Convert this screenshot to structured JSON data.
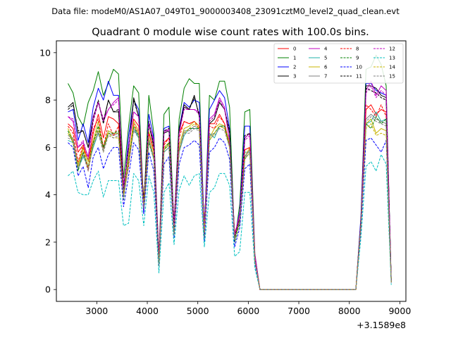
{
  "chart_data": {
    "type": "line",
    "suptitle": "Data file: modeM0/AS1A07_049T01_9000003408_23091cztM0_level2_quad_clean.evt",
    "title": "Quadrant 0 module wise count rates with 100.0s bins.",
    "xlabel": "",
    "ylabel": "",
    "x_offset_label": "+3.1589e8",
    "xlim": [
      2200,
      9120
    ],
    "ylim": [
      -0.5,
      10.5
    ],
    "xticks": [
      3000,
      4000,
      5000,
      6000,
      7000,
      8000,
      9000
    ],
    "xtick_labels": [
      "3000",
      "4000",
      "5000",
      "6000",
      "7000",
      "8000",
      "9000"
    ],
    "yticks": [
      0,
      2,
      4,
      6,
      8,
      10
    ],
    "ytick_labels": [
      "0",
      "2",
      "4",
      "6",
      "8",
      "10"
    ],
    "legend": {
      "location": "top-right",
      "ncol": 4
    },
    "x": [
      2430,
      2530,
      2630,
      2730,
      2830,
      2930,
      3030,
      3130,
      3230,
      3330,
      3430,
      3530,
      3630,
      3730,
      3830,
      3930,
      4030,
      4130,
      4230,
      4330,
      4430,
      4530,
      4630,
      4730,
      4830,
      4930,
      5030,
      5130,
      5230,
      5330,
      5430,
      5530,
      5630,
      5730,
      5830,
      5930,
      6030,
      6130,
      6230,
      6330,
      6430,
      6530,
      6630,
      6730,
      6830,
      6930,
      7030,
      7130,
      7230,
      7330,
      7430,
      7530,
      7630,
      7730,
      7830,
      7930,
      8030,
      8130,
      8230,
      8330,
      8430,
      8530,
      8630,
      8730,
      8830
    ],
    "series": [
      {
        "name": "0",
        "color": "#ff0000",
        "dash": "solid",
        "values": [
          7.0,
          6.8,
          5.8,
          6.1,
          5.4,
          6.6,
          7.4,
          6.4,
          7.3,
          7.2,
          7.0,
          4.2,
          5.4,
          7.2,
          6.9,
          3.8,
          6.6,
          5.8,
          1.2,
          6.2,
          6.4,
          2.9,
          6.6,
          7.1,
          7.0,
          7.1,
          6.9,
          2.8,
          7.0,
          7.0,
          7.4,
          7.0,
          6.1,
          2.4,
          3.0,
          5.9,
          6.0,
          1.2,
          0,
          0,
          0,
          0,
          0,
          0,
          0,
          0,
          0,
          0,
          0,
          0,
          0,
          0,
          0,
          0,
          0,
          0,
          0,
          0,
          2.9,
          7.6,
          7.8,
          7.4,
          7.6,
          7.5,
          0.4
        ]
      },
      {
        "name": "1",
        "color": "#008000",
        "dash": "solid",
        "values": [
          8.7,
          8.3,
          7.3,
          6.9,
          7.9,
          8.4,
          9.2,
          8.2,
          8.7,
          9.3,
          9.1,
          4.7,
          6.9,
          8.6,
          8.3,
          3.4,
          8.2,
          6.6,
          1.4,
          7.4,
          7.7,
          2.7,
          7.2,
          8.5,
          8.9,
          8.7,
          8.7,
          2.4,
          8.2,
          8.0,
          8.8,
          8.8,
          7.7,
          2.0,
          3.6,
          7.5,
          7.6,
          1.5,
          0,
          0,
          0,
          0,
          0,
          0,
          0,
          0,
          0,
          0,
          0,
          0,
          0,
          0,
          0,
          0,
          0,
          0,
          0,
          0,
          3.0,
          9.3,
          9.4,
          9.9,
          9.5,
          8.6,
          0.3
        ]
      },
      {
        "name": "2",
        "color": "#0000ff",
        "dash": "solid",
        "values": [
          7.5,
          7.6,
          6.3,
          7.0,
          6.2,
          7.7,
          8.5,
          8.0,
          8.8,
          8.2,
          8.2,
          4.1,
          6.5,
          8.0,
          7.6,
          3.2,
          7.4,
          6.4,
          1.1,
          6.8,
          6.9,
          2.6,
          6.8,
          7.9,
          7.7,
          8.0,
          7.9,
          2.6,
          7.6,
          8.0,
          8.4,
          8.1,
          6.8,
          2.2,
          3.3,
          6.9,
          6.9,
          1.3,
          0,
          0,
          0,
          0,
          0,
          0,
          0,
          0,
          0,
          0,
          0,
          0,
          0,
          0,
          0,
          0,
          0,
          0,
          0,
          0,
          3.1,
          8.7,
          8.7,
          8.4,
          8.3,
          8.2,
          0.3
        ]
      },
      {
        "name": "3",
        "color": "#000000",
        "dash": "solid",
        "values": [
          7.7,
          7.9,
          6.6,
          6.7,
          6.0,
          7.3,
          7.9,
          7.1,
          8.0,
          7.5,
          7.5,
          4.3,
          5.9,
          8.1,
          7.3,
          3.7,
          7.0,
          6.0,
          1.2,
          6.6,
          6.7,
          2.5,
          6.7,
          7.8,
          7.6,
          8.2,
          7.3,
          2.2,
          7.0,
          7.2,
          7.9,
          7.6,
          6.6,
          2.2,
          3.0,
          6.4,
          6.6,
          1.3,
          0,
          0,
          0,
          0,
          0,
          0,
          0,
          0,
          0,
          0,
          0,
          0,
          0,
          0,
          0,
          0,
          0,
          0,
          0,
          0,
          2.8,
          8.6,
          8.6,
          8.5,
          8.2,
          8.1,
          0.4
        ]
      },
      {
        "name": "4",
        "color": "#c000c0",
        "dash": "solid",
        "values": [
          7.3,
          7.1,
          6.0,
          6.2,
          5.6,
          7.3,
          7.9,
          7.1,
          7.6,
          7.9,
          8.1,
          4.4,
          6.0,
          7.5,
          7.3,
          3.5,
          7.0,
          6.3,
          1.4,
          6.7,
          6.7,
          2.8,
          6.6,
          7.7,
          7.6,
          7.6,
          7.5,
          2.4,
          7.2,
          7.4,
          8.1,
          7.7,
          6.2,
          2.3,
          3.2,
          6.4,
          6.6,
          1.5,
          0,
          0,
          0,
          0,
          0,
          0,
          0,
          0,
          0,
          0,
          0,
          0,
          0,
          0,
          0,
          0,
          0,
          0,
          0,
          0,
          2.8,
          8.4,
          8.8,
          8.2,
          8.6,
          8.4,
          0.3
        ]
      },
      {
        "name": "5",
        "color": "#20b2aa",
        "dash": "solid",
        "values": [
          6.3,
          6.2,
          5.1,
          5.6,
          5.2,
          6.0,
          6.6,
          6.0,
          6.7,
          6.6,
          6.6,
          4.0,
          5.3,
          6.8,
          6.4,
          3.4,
          6.3,
          5.5,
          1.0,
          5.8,
          6.0,
          2.5,
          5.8,
          6.5,
          6.8,
          6.8,
          6.8,
          2.1,
          6.6,
          6.4,
          6.9,
          6.9,
          6.2,
          2.1,
          2.9,
          5.8,
          5.8,
          1.2,
          0,
          0,
          0,
          0,
          0,
          0,
          0,
          0,
          0,
          0,
          0,
          0,
          0,
          0,
          0,
          0,
          0,
          0,
          0,
          0,
          2.8,
          7.0,
          7.1,
          7.5,
          7.1,
          7.2,
          0.3
        ]
      },
      {
        "name": "6",
        "color": "#c8b400",
        "dash": "solid",
        "values": [
          6.8,
          6.3,
          5.3,
          6.0,
          5.4,
          6.3,
          7.1,
          6.0,
          6.7,
          6.6,
          6.6,
          4.0,
          5.6,
          7.1,
          6.7,
          3.6,
          6.7,
          5.8,
          1.1,
          6.0,
          6.2,
          2.3,
          6.1,
          6.8,
          6.9,
          7.1,
          6.9,
          2.5,
          6.4,
          6.8,
          7.0,
          6.9,
          6.2,
          2.2,
          3.0,
          5.6,
          6.0,
          1.3,
          0,
          0,
          0,
          0,
          0,
          0,
          0,
          0,
          0,
          0,
          0,
          0,
          0,
          0,
          0,
          0,
          0,
          0,
          0,
          0,
          2.8,
          7.0,
          7.2,
          6.6,
          6.8,
          6.7,
          0.3
        ]
      },
      {
        "name": "7",
        "color": "#808080",
        "dash": "solid",
        "values": [
          6.5,
          6.4,
          5.2,
          5.8,
          5.1,
          6.2,
          6.7,
          5.9,
          6.6,
          6.5,
          6.6,
          4.0,
          5.4,
          6.8,
          6.5,
          3.5,
          6.4,
          5.6,
          1.1,
          5.9,
          6.1,
          2.4,
          5.9,
          6.7,
          6.7,
          6.9,
          6.8,
          2.3,
          6.5,
          6.6,
          6.9,
          6.8,
          6.1,
          2.2,
          3.0,
          5.6,
          5.9,
          1.3,
          0,
          0,
          0,
          0,
          0,
          0,
          0,
          0,
          0,
          0,
          0,
          0,
          0,
          0,
          0,
          0,
          0,
          0,
          0,
          0,
          2.8,
          7.2,
          7.4,
          7.2,
          7.1,
          7.0,
          0.3
        ]
      },
      {
        "name": "8",
        "color": "#ff0000",
        "dash": "dashed",
        "values": [
          6.9,
          6.6,
          5.4,
          6.1,
          5.0,
          6.8,
          7.2,
          6.0,
          7.0,
          6.5,
          6.9,
          4.0,
          5.2,
          7.0,
          6.6,
          3.6,
          6.6,
          5.9,
          1.2,
          6.1,
          6.4,
          2.6,
          6.4,
          7.1,
          7.0,
          7.1,
          6.8,
          2.5,
          6.9,
          6.8,
          7.3,
          7.0,
          6.0,
          2.3,
          2.9,
          5.9,
          6.0,
          1.2,
          0,
          0,
          0,
          0,
          0,
          0,
          0,
          0,
          0,
          0,
          0,
          0,
          0,
          0,
          0,
          0,
          0,
          0,
          0,
          0,
          2.9,
          7.8,
          7.6,
          7.3,
          7.8,
          7.3,
          0.3
        ]
      },
      {
        "name": "9",
        "color": "#008000",
        "dash": "dashed",
        "values": [
          6.7,
          6.2,
          5.0,
          5.8,
          5.2,
          6.2,
          6.9,
          6.0,
          6.6,
          6.6,
          6.7,
          3.8,
          5.4,
          6.9,
          6.5,
          3.4,
          6.2,
          5.5,
          1.1,
          5.9,
          6.2,
          2.4,
          5.9,
          6.6,
          6.8,
          6.8,
          6.8,
          2.3,
          6.3,
          6.6,
          6.9,
          6.9,
          6.0,
          2.0,
          2.8,
          5.6,
          5.7,
          1.2,
          0,
          0,
          0,
          0,
          0,
          0,
          0,
          0,
          0,
          0,
          0,
          0,
          0,
          0,
          0,
          0,
          0,
          0,
          0,
          0,
          2.7,
          7.0,
          6.8,
          7.3,
          7.0,
          7.2,
          0.3
        ]
      },
      {
        "name": "10",
        "color": "#0000ff",
        "dash": "dashed",
        "values": [
          6.2,
          6.0,
          4.8,
          5.2,
          4.3,
          5.6,
          6.0,
          5.1,
          5.7,
          6.0,
          6.0,
          3.5,
          4.8,
          6.2,
          5.9,
          3.2,
          5.8,
          5.0,
          1.0,
          5.3,
          5.6,
          2.2,
          5.3,
          6.0,
          6.1,
          6.3,
          6.1,
          2.0,
          5.8,
          6.0,
          6.4,
          6.2,
          5.5,
          1.8,
          2.6,
          5.1,
          5.3,
          1.1,
          0,
          0,
          0,
          0,
          0,
          0,
          0,
          0,
          0,
          0,
          0,
          0,
          0,
          0,
          0,
          0,
          0,
          0,
          0,
          0,
          2.5,
          6.3,
          6.4,
          6.1,
          5.8,
          6.3,
          0.3
        ]
      },
      {
        "name": "11",
        "color": "#000000",
        "dash": "dashed",
        "values": [
          7.6,
          7.8,
          6.7,
          6.7,
          6.0,
          7.2,
          8.0,
          7.0,
          8.0,
          7.5,
          7.6,
          4.3,
          6.0,
          8.0,
          7.3,
          3.6,
          7.1,
          6.1,
          1.2,
          6.7,
          6.8,
          2.6,
          6.8,
          7.7,
          7.6,
          8.1,
          7.4,
          2.3,
          7.1,
          7.3,
          8.0,
          7.6,
          6.7,
          2.2,
          3.0,
          6.5,
          6.6,
          1.3,
          0,
          0,
          0,
          0,
          0,
          0,
          0,
          0,
          0,
          0,
          0,
          0,
          0,
          0,
          0,
          0,
          0,
          0,
          0,
          0,
          2.9,
          8.5,
          8.4,
          8.3,
          8.1,
          8.0,
          0.4
        ]
      },
      {
        "name": "12",
        "color": "#c000c0",
        "dash": "dashed",
        "values": [
          7.3,
          7.2,
          6.0,
          6.3,
          5.5,
          7.1,
          7.9,
          7.2,
          7.6,
          7.8,
          8.0,
          4.3,
          6.1,
          7.5,
          7.3,
          3.4,
          7.0,
          6.2,
          1.4,
          6.6,
          6.8,
          2.7,
          6.6,
          7.6,
          7.6,
          7.6,
          7.4,
          2.4,
          7.1,
          7.3,
          8.0,
          7.6,
          6.3,
          2.3,
          3.1,
          6.3,
          6.5,
          1.4,
          0,
          0,
          0,
          0,
          0,
          0,
          0,
          0,
          0,
          0,
          0,
          0,
          0,
          0,
          0,
          0,
          0,
          0,
          0,
          0,
          2.8,
          8.3,
          8.6,
          8.1,
          8.4,
          8.2,
          0.3
        ]
      },
      {
        "name": "13",
        "color": "#00c0c0",
        "dash": "dashed",
        "values": [
          4.8,
          5.0,
          4.1,
          4.0,
          4.0,
          4.6,
          5.0,
          3.9,
          4.6,
          4.6,
          4.6,
          2.7,
          2.8,
          4.9,
          4.6,
          2.7,
          4.8,
          4.1,
          0.7,
          4.1,
          4.5,
          1.9,
          4.2,
          4.8,
          4.4,
          4.8,
          4.9,
          1.8,
          4.1,
          4.3,
          4.9,
          4.9,
          4.4,
          1.4,
          1.6,
          4.1,
          4.1,
          0.9,
          0,
          0,
          0,
          0,
          0,
          0,
          0,
          0,
          0,
          0,
          0,
          0,
          0,
          0,
          0,
          0,
          0,
          0,
          0,
          0,
          2.2,
          5.2,
          5.4,
          5.0,
          5.7,
          5.3,
          0.2
        ]
      },
      {
        "name": "14",
        "color": "#c8b400",
        "dash": "dashed",
        "values": [
          6.6,
          6.2,
          5.2,
          5.9,
          5.2,
          6.1,
          6.8,
          5.8,
          6.6,
          6.4,
          6.4,
          3.9,
          5.5,
          6.9,
          6.6,
          3.5,
          6.4,
          5.6,
          1.1,
          5.9,
          6.1,
          2.3,
          5.9,
          6.6,
          6.8,
          7.0,
          6.8,
          2.4,
          6.3,
          6.6,
          6.9,
          6.8,
          6.0,
          2.1,
          2.9,
          5.5,
          5.8,
          1.2,
          0,
          0,
          0,
          0,
          0,
          0,
          0,
          0,
          0,
          0,
          0,
          0,
          0,
          0,
          0,
          0,
          0,
          0,
          0,
          0,
          2.7,
          6.8,
          7.0,
          6.5,
          6.6,
          6.5,
          0.3
        ]
      },
      {
        "name": "15",
        "color": "#808080",
        "dash": "dashed",
        "values": [
          6.4,
          6.3,
          5.1,
          5.7,
          5.0,
          6.1,
          6.6,
          5.8,
          6.5,
          6.4,
          6.5,
          3.9,
          5.3,
          6.7,
          6.4,
          3.4,
          6.3,
          5.5,
          1.0,
          5.8,
          6.0,
          2.3,
          5.8,
          6.6,
          6.6,
          6.8,
          6.7,
          2.2,
          6.4,
          6.5,
          6.8,
          6.7,
          6.0,
          2.1,
          2.9,
          5.5,
          5.8,
          1.2,
          0,
          0,
          0,
          0,
          0,
          0,
          0,
          0,
          0,
          0,
          0,
          0,
          0,
          0,
          0,
          0,
          0,
          0,
          0,
          0,
          2.7,
          7.1,
          7.3,
          7.1,
          7.0,
          6.9,
          0.3
        ]
      }
    ]
  }
}
